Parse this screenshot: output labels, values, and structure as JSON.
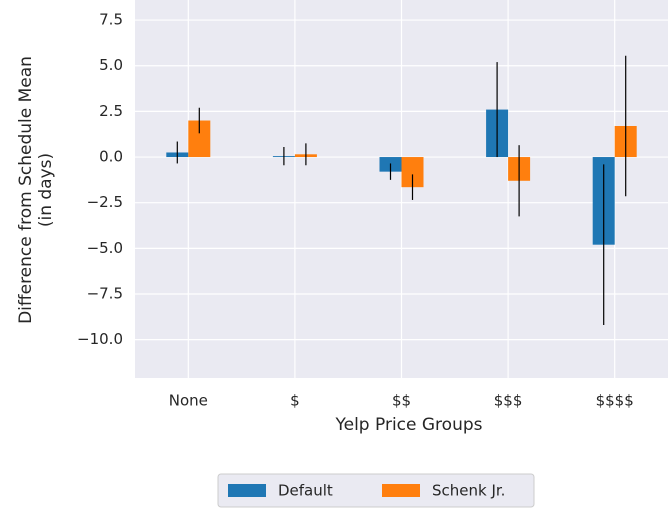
{
  "chart_data": {
    "type": "bar",
    "xlabel": "Yelp Price Groups",
    "ylabel": [
      "Difference from Schedule Mean",
      "(in days)"
    ],
    "categories": [
      "None",
      "$",
      "$$",
      "$$$",
      "$$$$"
    ],
    "series": [
      {
        "name": "Default",
        "color": "#1f77b4",
        "values": [
          0.25,
          0.05,
          -0.8,
          2.6,
          -4.8
        ],
        "errors": [
          0.6,
          0.5,
          0.45,
          2.6,
          4.4
        ]
      },
      {
        "name": "Schenk Jr.",
        "color": "#ff7f0e",
        "values": [
          2.0,
          0.15,
          -1.65,
          -1.3,
          1.7
        ],
        "errors": [
          0.7,
          0.6,
          0.7,
          1.95,
          3.85
        ]
      }
    ],
    "ylim": [
      -12.1,
      8.6
    ],
    "yticks": [
      {
        "value": 7.5,
        "label": "7.5"
      },
      {
        "value": 5,
        "label": "5.0"
      },
      {
        "value": 2.5,
        "label": "2.5"
      },
      {
        "value": 0,
        "label": "0.0"
      },
      {
        "value": -2.5,
        "label": "−2.5"
      },
      {
        "value": -5,
        "label": "−5.0"
      },
      {
        "value": -7.5,
        "label": "−7.5"
      },
      {
        "value": -10,
        "label": "−10.0"
      }
    ],
    "grid": true,
    "legend": "bottom"
  }
}
